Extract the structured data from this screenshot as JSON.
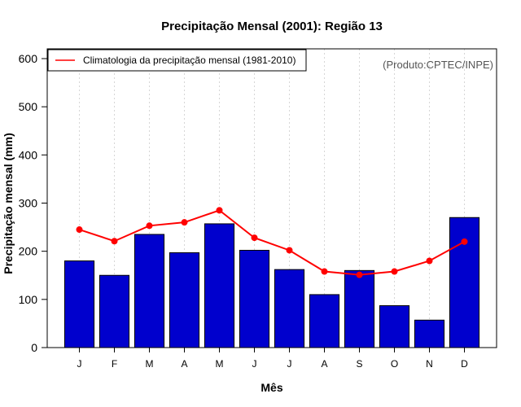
{
  "chart_data": {
    "type": "bar",
    "title": "Precipitação Mensal (2001): Região 13",
    "xlabel": "Mês",
    "ylabel": "Precipitação mensal (mm)",
    "ylim": [
      0,
      600
    ],
    "yticks": [
      0,
      100,
      200,
      300,
      400,
      500,
      600
    ],
    "categories": [
      "J",
      "F",
      "M",
      "A",
      "M",
      "J",
      "J",
      "A",
      "S",
      "O",
      "N",
      "D"
    ],
    "series": [
      {
        "name": "Precipitação mensal (2001)",
        "type": "bar",
        "color": "#0000CD",
        "values": [
          180,
          150,
          235,
          197,
          257,
          202,
          162,
          110,
          160,
          87,
          57,
          270
        ]
      },
      {
        "name": "Climatologia da precipitação mensal (1981-2010)",
        "type": "line",
        "color": "#FF0000",
        "values": [
          245,
          221,
          253,
          260,
          285,
          228,
          202,
          158,
          151,
          158,
          180,
          220
        ]
      }
    ],
    "legend": {
      "position": "top-left",
      "entries": [
        "Climatologia da precipitação mensal (1981-2010)"
      ]
    },
    "annotation": "(Produto:CPTEC/INPE)",
    "grid": "vertical-dotted"
  }
}
